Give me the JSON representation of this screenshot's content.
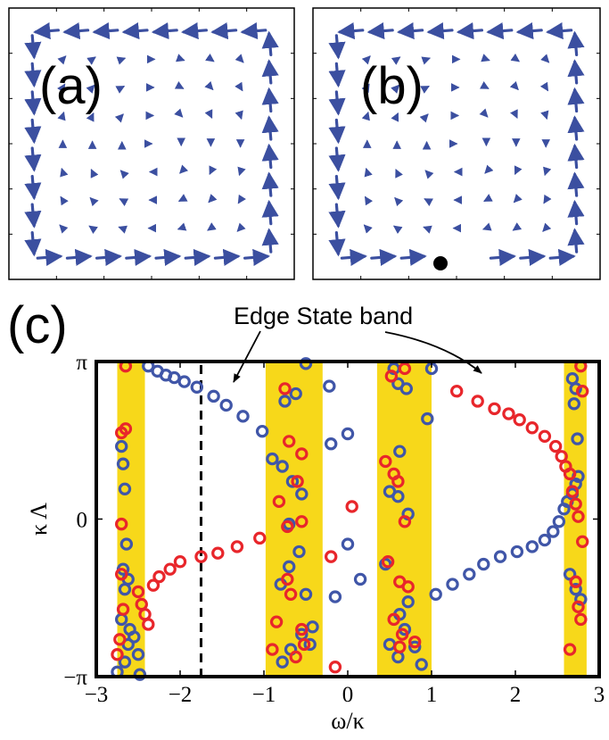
{
  "panels": {
    "a": {
      "label": "(a)"
    },
    "b": {
      "label": "(b)"
    },
    "c": {
      "label": "(c)"
    }
  },
  "annotation": {
    "text": "Edge State band"
  },
  "colors": {
    "arrow": "#3b4fa0",
    "blue_series": "#4056a8",
    "red_series": "#e8262b",
    "band": "#f7d81a"
  },
  "chart_data": {
    "type": "scatter",
    "title": "",
    "xlabel": "ω/κ",
    "ylabel": "κ Λ",
    "xlim": [
      -3,
      3
    ],
    "ylim": [
      -3.1416,
      3.1416
    ],
    "x_ticks": [
      -3,
      -2,
      -1,
      0,
      1,
      2,
      3
    ],
    "x_tick_labels": [
      "−3",
      "−2",
      "−1",
      "0",
      "1",
      "2",
      "3"
    ],
    "y_ticks": [
      -3.1416,
      0,
      3.1416
    ],
    "y_tick_labels": [
      "−π",
      "0",
      "π"
    ],
    "bands": [
      [
        -2.75,
        -2.42
      ],
      [
        -0.98,
        -0.3
      ],
      [
        0.35,
        1.0
      ],
      [
        2.58,
        2.85
      ]
    ],
    "dashed_line_x": -1.75,
    "series": [
      {
        "color": "blue",
        "points": [
          [
            -2.38,
            3.05
          ],
          [
            -2.27,
            2.95
          ],
          [
            -2.17,
            2.87
          ],
          [
            -2.07,
            2.82
          ],
          [
            -1.95,
            2.74
          ],
          [
            -1.8,
            2.63
          ],
          [
            -1.6,
            2.45
          ],
          [
            -1.45,
            2.27
          ],
          [
            -1.25,
            2.05
          ],
          [
            -1.02,
            1.75
          ],
          [
            -2.7,
            1.45
          ],
          [
            -2.68,
            1.1
          ],
          [
            -2.66,
            0.6
          ],
          [
            -2.64,
            -0.5
          ],
          [
            -2.68,
            -1.0
          ],
          [
            -2.62,
            -1.2
          ],
          [
            -2.66,
            -1.4
          ],
          [
            -2.7,
            -2.0
          ],
          [
            -2.6,
            -2.2
          ],
          [
            -2.55,
            -2.35
          ],
          [
            -2.62,
            -2.5
          ],
          [
            -2.5,
            -2.7
          ],
          [
            -2.66,
            -2.85
          ],
          [
            -2.75,
            -3.05
          ],
          [
            -2.48,
            -3.1
          ],
          [
            -0.75,
            2.35
          ],
          [
            -0.62,
            2.5
          ],
          [
            -0.9,
            1.2
          ],
          [
            -0.78,
            1.05
          ],
          [
            -0.66,
            0.75
          ],
          [
            -0.55,
            0.5
          ],
          [
            -0.7,
            -0.1
          ],
          [
            -0.58,
            -0.65
          ],
          [
            -0.7,
            -0.95
          ],
          [
            -0.8,
            -1.3
          ],
          [
            -0.5,
            -1.5
          ],
          [
            -0.42,
            -2.15
          ],
          [
            -0.55,
            -2.3
          ],
          [
            -0.45,
            -2.5
          ],
          [
            -0.68,
            -2.6
          ],
          [
            -0.78,
            -2.85
          ],
          [
            -0.5,
            3.1
          ],
          [
            -0.22,
            2.65
          ],
          [
            -0.2,
            1.5
          ],
          [
            -0.15,
            -1.55
          ],
          [
            0.0,
            1.7
          ],
          [
            0.0,
            -0.5
          ],
          [
            0.15,
            -1.2
          ],
          [
            0.55,
            3.0
          ],
          [
            0.6,
            2.7
          ],
          [
            0.7,
            2.6
          ],
          [
            0.62,
            1.35
          ],
          [
            0.5,
            0.55
          ],
          [
            0.6,
            0.45
          ],
          [
            0.72,
            0.1
          ],
          [
            0.45,
            -0.9
          ],
          [
            0.72,
            -1.65
          ],
          [
            0.62,
            -1.9
          ],
          [
            0.68,
            -2.2
          ],
          [
            0.5,
            -2.5
          ],
          [
            0.8,
            -2.55
          ],
          [
            0.6,
            -2.75
          ],
          [
            0.88,
            -2.9
          ],
          [
            0.95,
            2.0
          ],
          [
            1.0,
            3.0
          ],
          [
            1.05,
            -1.5
          ],
          [
            1.25,
            -1.3
          ],
          [
            1.45,
            -1.1
          ],
          [
            1.62,
            -0.9
          ],
          [
            1.82,
            -0.75
          ],
          [
            2.02,
            -0.65
          ],
          [
            2.2,
            -0.55
          ],
          [
            2.35,
            -0.42
          ],
          [
            2.45,
            -0.25
          ],
          [
            2.52,
            -0.05
          ],
          [
            2.58,
            0.2
          ],
          [
            2.62,
            0.35
          ],
          [
            2.68,
            0.5
          ],
          [
            2.72,
            0.7
          ],
          [
            2.75,
            0.85
          ],
          [
            2.65,
            -1.1
          ],
          [
            2.72,
            -1.4
          ],
          [
            2.78,
            -1.6
          ],
          [
            2.74,
            1.6
          ],
          [
            2.7,
            2.3
          ],
          [
            2.72,
            2.6
          ],
          [
            2.68,
            2.8
          ]
        ]
      },
      {
        "color": "red",
        "points": [
          [
            -2.7,
            1.72
          ],
          [
            -2.65,
            1.8
          ],
          [
            -2.7,
            -0.1
          ],
          [
            -2.7,
            -1.1
          ],
          [
            -2.68,
            -1.8
          ],
          [
            -2.72,
            -2.4
          ],
          [
            -2.75,
            -2.7
          ],
          [
            -2.65,
            3.05
          ],
          [
            -2.5,
            -1.45
          ],
          [
            -2.46,
            -1.7
          ],
          [
            -2.42,
            -1.9
          ],
          [
            -2.38,
            -2.1
          ],
          [
            -2.32,
            -1.32
          ],
          [
            -2.25,
            -1.15
          ],
          [
            -2.12,
            -1.0
          ],
          [
            -2.0,
            -0.85
          ],
          [
            -1.75,
            -0.75
          ],
          [
            -1.55,
            -0.68
          ],
          [
            -1.32,
            -0.55
          ],
          [
            -1.05,
            -0.38
          ],
          [
            -0.72,
            -0.15
          ],
          [
            -0.82,
            0.35
          ],
          [
            -0.6,
            0.75
          ],
          [
            -0.55,
            1.3
          ],
          [
            -0.7,
            1.55
          ],
          [
            -0.55,
            -0.05
          ],
          [
            -0.72,
            -1.2
          ],
          [
            -0.68,
            -1.5
          ],
          [
            -0.85,
            -2.05
          ],
          [
            -0.55,
            -2.2
          ],
          [
            -0.52,
            -2.5
          ],
          [
            -0.62,
            -2.75
          ],
          [
            -0.9,
            -2.6
          ],
          [
            -0.75,
            2.6
          ],
          [
            -0.2,
            -0.75
          ],
          [
            0.05,
            0.25
          ],
          [
            -0.15,
            -2.95
          ],
          [
            0.45,
            1.15
          ],
          [
            0.55,
            0.9
          ],
          [
            0.6,
            0.75
          ],
          [
            0.68,
            -0.05
          ],
          [
            0.48,
            -0.85
          ],
          [
            0.62,
            -1.25
          ],
          [
            0.72,
            -1.35
          ],
          [
            0.55,
            -2.0
          ],
          [
            0.65,
            -2.3
          ],
          [
            0.62,
            -2.55
          ],
          [
            0.8,
            -2.45
          ],
          [
            0.52,
            2.85
          ],
          [
            0.68,
            3.0
          ],
          [
            1.3,
            2.55
          ],
          [
            1.55,
            2.35
          ],
          [
            1.75,
            2.2
          ],
          [
            1.92,
            2.1
          ],
          [
            2.05,
            1.98
          ],
          [
            2.2,
            1.82
          ],
          [
            2.35,
            1.65
          ],
          [
            2.48,
            1.45
          ],
          [
            2.55,
            1.25
          ],
          [
            2.6,
            1.05
          ],
          [
            2.65,
            0.9
          ],
          [
            2.68,
            0.55
          ],
          [
            2.72,
            0.3
          ],
          [
            2.75,
            0.05
          ],
          [
            2.8,
            -0.45
          ],
          [
            2.72,
            -1.25
          ],
          [
            2.75,
            -1.75
          ],
          [
            2.78,
            -2.0
          ],
          [
            2.65,
            -2.6
          ],
          [
            2.78,
            3.05
          ],
          [
            2.8,
            2.55
          ]
        ]
      }
    ]
  }
}
